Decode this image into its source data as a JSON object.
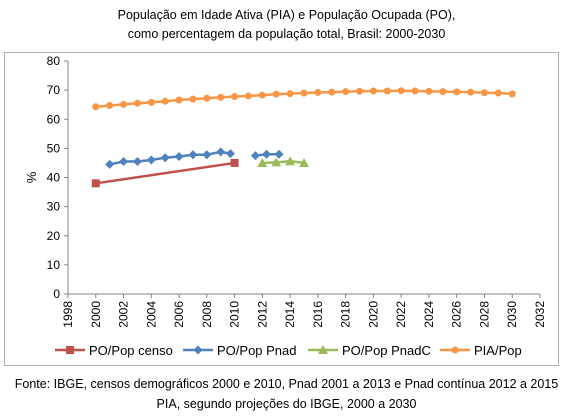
{
  "title_line1": "População em Idade Ativa (PIA) e População Ocupada (PO),",
  "title_line2": "como percentagem da população total, Brasil: 2000-2030",
  "source_line1": "Fonte: IBGE, censos demográficos 2000 e 2010, Pnad 2001 a 2013 e Pnad contínua 2012 a 2015",
  "source_line2": "PIA, segundo projeções do IBGE, 2000 a 2030",
  "chart_data": {
    "type": "line",
    "ylabel": "%",
    "xlim": [
      1998,
      2032
    ],
    "ylim": [
      0,
      80
    ],
    "xticks": [
      1998,
      2000,
      2002,
      2004,
      2006,
      2008,
      2010,
      2012,
      2014,
      2016,
      2018,
      2020,
      2022,
      2024,
      2026,
      2028,
      2030,
      2032
    ],
    "yticks": [
      0,
      10,
      20,
      30,
      40,
      50,
      60,
      70,
      80
    ],
    "grid": false,
    "legend": "bottom",
    "series": [
      {
        "name": "PO/Pop censo",
        "color": "#c0504d",
        "marker": "square",
        "points": [
          [
            2000,
            38.0
          ],
          [
            2010,
            45.0
          ]
        ]
      },
      {
        "name": "PO/Pop Pnad",
        "color": "#4f81bd",
        "marker": "diamond",
        "segments": [
          [
            [
              2001,
              44.5
            ],
            [
              2002,
              45.5
            ],
            [
              2003,
              45.5
            ],
            [
              2004,
              46.0
            ],
            [
              2005,
              46.8
            ],
            [
              2006,
              47.2
            ],
            [
              2007,
              47.8
            ],
            [
              2008,
              47.8
            ],
            [
              2009,
              48.8
            ],
            [
              2009.7,
              48.2
            ]
          ],
          [
            [
              2011.5,
              47.5
            ],
            [
              2012.3,
              48.0
            ],
            [
              2013.2,
              48.0
            ]
          ]
        ]
      },
      {
        "name": "PO/Pop PnadC",
        "color": "#9bbb59",
        "marker": "triangle",
        "points": [
          [
            2012,
            45.0
          ],
          [
            2013,
            45.2
          ],
          [
            2014,
            45.6
          ],
          [
            2015,
            45.0
          ]
        ]
      },
      {
        "name": "PIA/Pop",
        "color": "#f79646",
        "marker": "circle",
        "points": [
          [
            2000,
            64.3
          ],
          [
            2001,
            64.7
          ],
          [
            2002,
            65.1
          ],
          [
            2003,
            65.5
          ],
          [
            2004,
            65.8
          ],
          [
            2005,
            66.2
          ],
          [
            2006,
            66.6
          ],
          [
            2007,
            66.9
          ],
          [
            2008,
            67.2
          ],
          [
            2009,
            67.5
          ],
          [
            2010,
            67.8
          ],
          [
            2011,
            68.0
          ],
          [
            2012,
            68.3
          ],
          [
            2013,
            68.6
          ],
          [
            2014,
            68.8
          ],
          [
            2015,
            69.0
          ],
          [
            2016,
            69.2
          ],
          [
            2017,
            69.3
          ],
          [
            2018,
            69.5
          ],
          [
            2019,
            69.6
          ],
          [
            2020,
            69.7
          ],
          [
            2021,
            69.7
          ],
          [
            2022,
            69.8
          ],
          [
            2023,
            69.7
          ],
          [
            2024,
            69.6
          ],
          [
            2025,
            69.5
          ],
          [
            2026,
            69.4
          ],
          [
            2027,
            69.3
          ],
          [
            2028,
            69.1
          ],
          [
            2029,
            69.0
          ],
          [
            2030,
            68.7
          ]
        ]
      }
    ]
  }
}
